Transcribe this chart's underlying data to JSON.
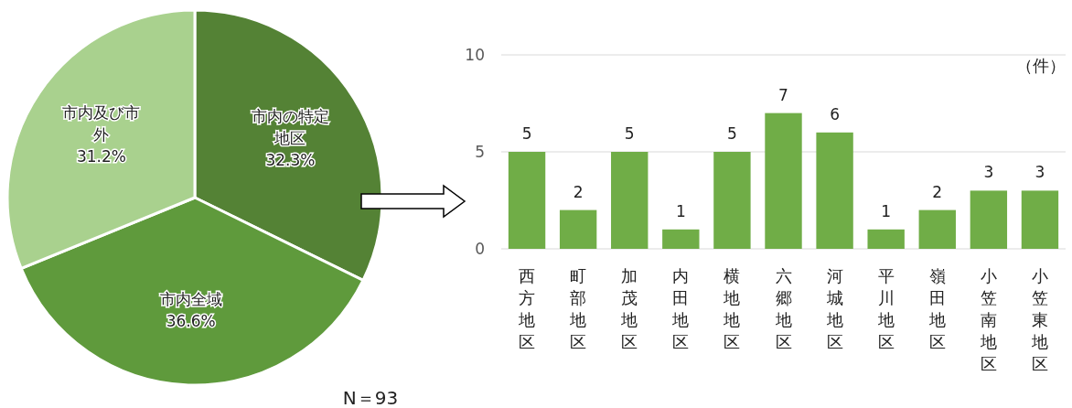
{
  "chart_data": [
    {
      "type": "pie",
      "categories": [
        "市内の特定地区",
        "市内全域",
        "市内及び市外"
      ],
      "values": [
        32.3,
        36.6,
        31.2
      ],
      "colors": [
        "#548235",
        "#5f9a3c",
        "#a9d18e"
      ],
      "value_labels": [
        "32.3%",
        "36.6%",
        "31.2%"
      ],
      "annotations": [
        "N＝93"
      ]
    },
    {
      "type": "bar",
      "categories": [
        "西方地区",
        "町部地区",
        "加茂地区",
        "内田地区",
        "横地地区",
        "六郷地区",
        "河城地区",
        "平川地区",
        "嶺田地区",
        "小笠南地区",
        "小笠東地区"
      ],
      "values": [
        5,
        2,
        5,
        1,
        5,
        7,
        6,
        1,
        2,
        3,
        3
      ],
      "color": "#70ad47",
      "ylim": [
        0,
        10
      ],
      "yticks": [
        0,
        5,
        10
      ],
      "grid": "y",
      "data_labels": true,
      "ylabel": "（件）"
    }
  ]
}
